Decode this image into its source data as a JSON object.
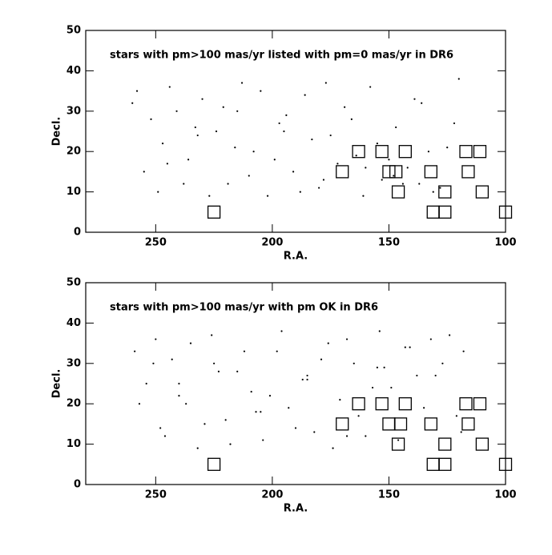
{
  "chart_data": [
    {
      "type": "scatter",
      "annotation": "stars with pm>100 mas/yr listed with pm=0 mas/yr in DR6",
      "xlabel": "R.A.",
      "ylabel": "Decl.",
      "xlim": [
        280,
        100
      ],
      "ylim": [
        0,
        50
      ],
      "xticks": [
        250,
        200,
        150,
        100
      ],
      "yticks": [
        0,
        10,
        20,
        30,
        40,
        50
      ],
      "series": [
        {
          "color": "#000000",
          "marker": "dot",
          "x": [
            258,
            252,
            247,
            241,
            236,
            230,
            224,
            219,
            213,
            208,
            202,
            197,
            191,
            186,
            180,
            175,
            169,
            164,
            158,
            153,
            147,
            142,
            136,
            131,
            125,
            120,
            255,
            249,
            244,
            238,
            233,
            227,
            221,
            216,
            210,
            205,
            199,
            194,
            188,
            183,
            177,
            172,
            166,
            161,
            155,
            150,
            144,
            139,
            133,
            128,
            122,
            260,
            245,
            232,
            215,
            195,
            178,
            160,
            148,
            137
          ],
          "y": [
            35,
            28,
            22,
            30,
            18,
            33,
            25,
            12,
            37,
            20,
            9,
            27,
            15,
            34,
            11,
            24,
            31,
            19,
            36,
            13,
            26,
            16,
            32,
            10,
            21,
            38,
            15,
            10,
            36,
            12,
            26,
            9,
            31,
            21,
            14,
            35,
            18,
            29,
            10,
            23,
            37,
            17,
            28,
            9,
            22,
            18,
            12,
            33,
            20,
            11,
            27,
            32,
            17,
            24,
            30,
            25,
            13,
            16,
            14,
            12
          ]
        },
        {
          "color": "#000000",
          "marker": "square",
          "x": [
            225,
            170,
            163,
            153,
            150,
            147,
            146,
            143,
            132,
            131,
            126,
            126,
            117,
            116,
            111,
            110,
            100
          ],
          "y": [
            5,
            15,
            20,
            20,
            15,
            15,
            10,
            20,
            15,
            5,
            5,
            10,
            20,
            15,
            20,
            10,
            5
          ]
        }
      ]
    },
    {
      "type": "scatter",
      "annotation": "stars with pm>100 mas/yr with pm OK in DR6",
      "xlabel": "R.A.",
      "ylabel": "Decl.",
      "xlim": [
        280,
        100
      ],
      "ylim": [
        0,
        50
      ],
      "xticks": [
        250,
        200,
        150,
        100
      ],
      "yticks": [
        0,
        10,
        20,
        30,
        40,
        50
      ],
      "series": [
        {
          "color": "#000000",
          "marker": "dot",
          "x": [
            257,
            251,
            246,
            240,
            235,
            229,
            223,
            218,
            212,
            207,
            201,
            196,
            190,
            185,
            179,
            174,
            168,
            163,
            157,
            152,
            146,
            141,
            135,
            130,
            124,
            119,
            254,
            248,
            243,
            237,
            232,
            226,
            220,
            215,
            209,
            204,
            198,
            193,
            187,
            182,
            176,
            171,
            165,
            160,
            154,
            149,
            143,
            138,
            132,
            127,
            121,
            259,
            250,
            240,
            225,
            205,
            185,
            168,
            155,
            118
          ],
          "y": [
            20,
            30,
            12,
            25,
            35,
            15,
            28,
            10,
            33,
            18,
            22,
            38,
            14,
            26,
            31,
            9,
            36,
            17,
            24,
            29,
            11,
            34,
            19,
            27,
            37,
            13,
            25,
            14,
            31,
            20,
            9,
            37,
            16,
            28,
            23,
            11,
            33,
            19,
            26,
            13,
            35,
            21,
            30,
            12,
            38,
            24,
            34,
            27,
            36,
            30,
            17,
            33,
            36,
            22,
            30,
            18,
            27,
            12,
            29,
            33
          ]
        },
        {
          "color": "#000000",
          "marker": "square",
          "x": [
            225,
            170,
            163,
            153,
            150,
            145,
            146,
            143,
            132,
            131,
            126,
            126,
            117,
            116,
            111,
            110,
            100
          ],
          "y": [
            5,
            15,
            20,
            20,
            15,
            15,
            10,
            20,
            15,
            5,
            5,
            10,
            20,
            15,
            20,
            10,
            5
          ]
        }
      ]
    }
  ]
}
